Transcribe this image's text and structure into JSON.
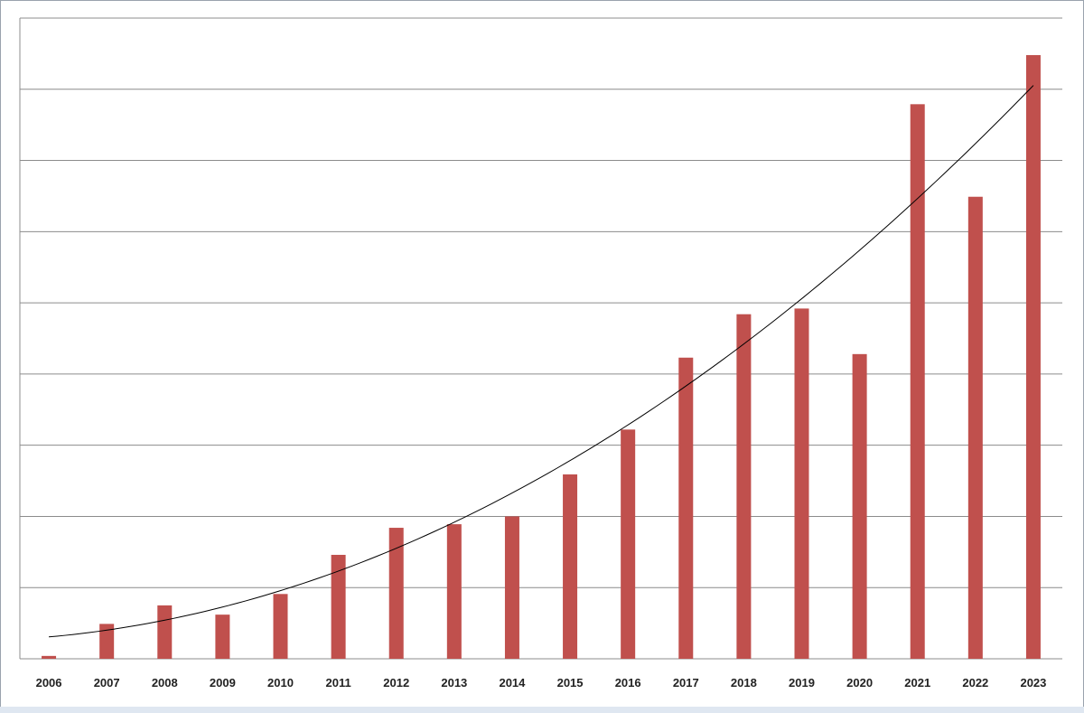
{
  "chart_data": {
    "type": "bar",
    "categories": [
      "2006",
      "2007",
      "2008",
      "2009",
      "2010",
      "2011",
      "2012",
      "2013",
      "2014",
      "2015",
      "2016",
      "2017",
      "2018",
      "2019",
      "2020",
      "2021",
      "2022",
      "2023"
    ],
    "series": [
      {
        "values": [
          0.04,
          0.49,
          0.75,
          0.62,
          0.91,
          1.46,
          1.84,
          1.89,
          2.0,
          2.59,
          3.22,
          4.23,
          4.84,
          4.92,
          4.28,
          7.79,
          6.49,
          8.48
        ]
      }
    ],
    "trendline": {
      "type": "polynomial",
      "color": "#000000"
    },
    "ylim": [
      0,
      9
    ],
    "y_gridlines": [
      0,
      1,
      2,
      3,
      4,
      5,
      6,
      7,
      8,
      9
    ],
    "y_tick_labels_shown": false,
    "bar_color": "#c0504d",
    "gridline_color": "#8c8c8c",
    "title": "",
    "xlabel": "",
    "ylabel": ""
  }
}
